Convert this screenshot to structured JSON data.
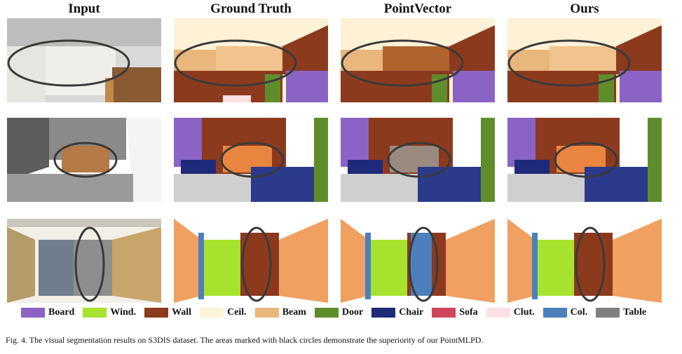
{
  "headers": {
    "input": "Input",
    "ground_truth": "Ground Truth",
    "pointvector": "PointVector",
    "ours": "Ours"
  },
  "legend": [
    {
      "label": "Board",
      "color": "#8a63c5"
    },
    {
      "label": "Wind.",
      "color": "#a6e22e"
    },
    {
      "label": "Wall",
      "color": "#8b3a1e"
    },
    {
      "label": "Ceil.",
      "color": "#fdf5d8"
    },
    {
      "label": "Beam",
      "color": "#e9b67c"
    },
    {
      "label": "Door",
      "color": "#5f8d2c"
    },
    {
      "label": "Chair",
      "color": "#1f2a7a"
    },
    {
      "label": "Sofa",
      "color": "#d0455c"
    },
    {
      "label": "Clut.",
      "color": "#fde0e4"
    },
    {
      "label": "Col.",
      "color": "#4b80bd"
    },
    {
      "label": "Table",
      "color": "#808080"
    }
  ],
  "caption": "Fig. 4.  The visual segmentation results on S3DIS dataset. The areas marked with black circles demonstrate the superiority of our PointMLPD."
}
